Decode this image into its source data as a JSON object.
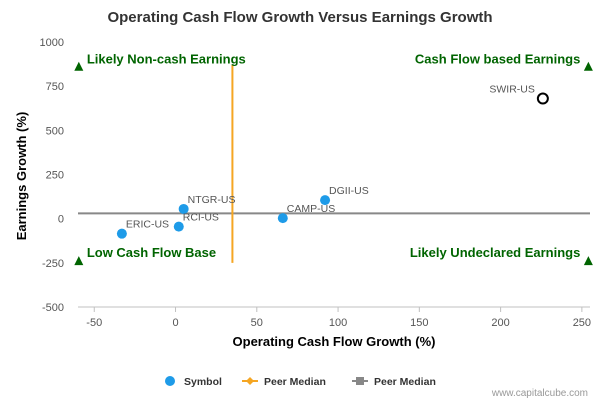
{
  "chart_data": {
    "type": "scatter",
    "title": "Operating Cash Flow Growth Versus Earnings Growth",
    "xlabel": "Operating Cash Flow Growth (%)",
    "ylabel": "Earnings Growth (%)",
    "xlim": [
      -60,
      255
    ],
    "ylim": [
      -500,
      1000
    ],
    "x_ticks": [
      -50,
      0,
      50,
      100,
      150,
      200,
      250
    ],
    "y_ticks": [
      -500,
      -250,
      0,
      250,
      500,
      750,
      1000
    ],
    "grid": false,
    "points": [
      {
        "label": "SWIR-US",
        "x": 226,
        "y": 680,
        "highlight": true
      },
      {
        "label": "DGII-US",
        "x": 92,
        "y": 105,
        "highlight": false
      },
      {
        "label": "CAMP-US",
        "x": 66,
        "y": 3,
        "highlight": false
      },
      {
        "label": "NTGR-US",
        "x": 5,
        "y": 55,
        "highlight": false
      },
      {
        "label": "RCI-US",
        "x": 2,
        "y": -45,
        "highlight": false
      },
      {
        "label": "ERIC-US",
        "x": -33,
        "y": -85,
        "highlight": false
      }
    ],
    "peer_median_x": 35,
    "peer_median_y": 30,
    "peer_median_x_range": [
      -250,
      870
    ],
    "peer_median_y_range": [
      -60,
      255
    ],
    "quadrant_labels": {
      "top_left": "Likely Non-cash Earnings",
      "top_right": "Cash Flow based Earnings",
      "bottom_left": "Low Cash Flow Base",
      "bottom_right": "Likely Undeclared Earnings"
    },
    "quadrant_marker_y": [
      860,
      -240
    ],
    "legend": {
      "placement": "bottom",
      "items": [
        {
          "label": "Symbol",
          "color": "#1e9be8",
          "marker": "circle"
        },
        {
          "label": "Peer Median",
          "color": "#f5a623",
          "marker": "diamond"
        },
        {
          "label": "Peer Median",
          "color": "#888888",
          "marker": "square"
        }
      ]
    },
    "colors": {
      "point": "#1e9be8",
      "vertical_median": "#f5a623",
      "horizontal_median": "#888888",
      "quadrant": "#006400"
    },
    "credit": "www.capitalcube.com"
  }
}
